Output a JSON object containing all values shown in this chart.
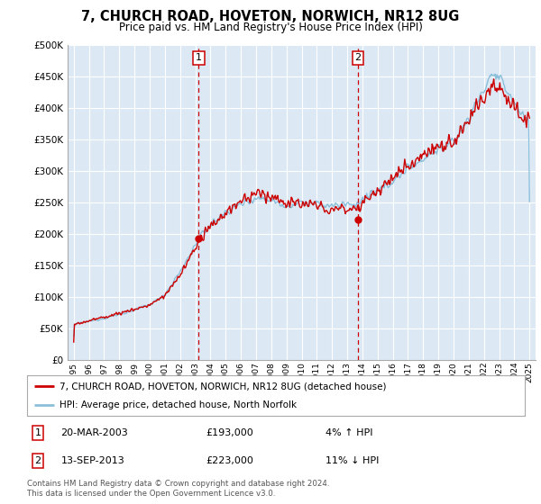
{
  "title": "7, CHURCH ROAD, HOVETON, NORWICH, NR12 8UG",
  "subtitle": "Price paid vs. HM Land Registry's House Price Index (HPI)",
  "legend_line1": "7, CHURCH ROAD, HOVETON, NORWICH, NR12 8UG (detached house)",
  "legend_line2": "HPI: Average price, detached house, North Norfolk",
  "footnote": "Contains HM Land Registry data © Crown copyright and database right 2024.\nThis data is licensed under the Open Government Licence v3.0.",
  "table": [
    {
      "num": "1",
      "date": "20-MAR-2003",
      "price": "£193,000",
      "hpi": "4% ↑ HPI"
    },
    {
      "num": "2",
      "date": "13-SEP-2013",
      "price": "£223,000",
      "hpi": "11% ↓ HPI"
    }
  ],
  "vline1_year": 2003.22,
  "vline2_year": 2013.71,
  "marker1_year": 2003.22,
  "marker1_val": 193000,
  "marker2_year": 2013.71,
  "marker2_val": 223000,
  "ylim": [
    0,
    500000
  ],
  "yticks": [
    0,
    50000,
    100000,
    150000,
    200000,
    250000,
    300000,
    350000,
    400000,
    450000,
    500000
  ],
  "bg_color": "#dce9f5",
  "red_color": "#cc0000",
  "blue_color": "#8bbfda",
  "grid_color": "#ffffff",
  "vline_color": "#cc0000",
  "xmin": 1994.6,
  "xmax": 2025.4
}
